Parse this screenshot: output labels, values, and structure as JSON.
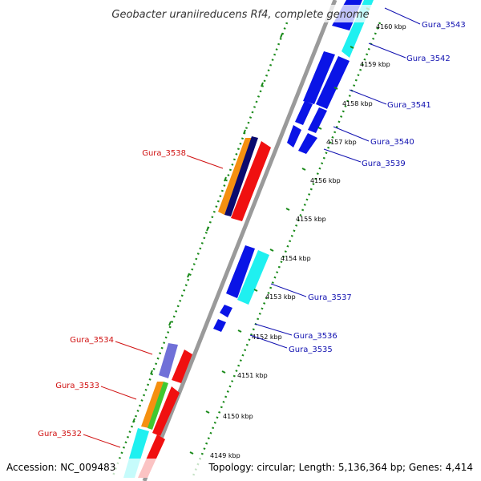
{
  "title": "Geobacter uraniireducens Rf4, complete genome",
  "accession": "Accession: NC_009483",
  "topology": "Topology: circular; Length: 5,136,364 bp; Genes: 4,414",
  "colors": {
    "blue": "#0a14e6",
    "cyan": "#1ff0f0",
    "red": "#f01010",
    "orange": "#f59010",
    "navy": "#0a0a6e",
    "purple": "#7070d8",
    "green": "#40c830",
    "backbone": "#9a9a9a",
    "tick": "#1a8a1a",
    "label_forward": "#1010b0",
    "label_reverse": "#d01010"
  },
  "ticks": [
    {
      "label": "4149 kbp"
    },
    {
      "label": "4150 kbp"
    },
    {
      "label": "4151 kbp"
    },
    {
      "label": "4152 kbp"
    },
    {
      "label": "4153 kbp"
    },
    {
      "label": "4154 kbp"
    },
    {
      "label": "4155 kbp"
    },
    {
      "label": "4156 kbp"
    },
    {
      "label": "4157 kbp"
    },
    {
      "label": "4158 kbp"
    },
    {
      "label": "4159 kbp"
    },
    {
      "label": "4160 kbp"
    }
  ],
  "gene_labels": [
    {
      "name": "Gura_3543",
      "strand": "forward"
    },
    {
      "name": "Gura_3542",
      "strand": "forward"
    },
    {
      "name": "Gura_3541",
      "strand": "forward"
    },
    {
      "name": "Gura_3540",
      "strand": "forward"
    },
    {
      "name": "Gura_3539",
      "strand": "forward"
    },
    {
      "name": "Gura_3538",
      "strand": "reverse"
    },
    {
      "name": "Gura_3537",
      "strand": "forward"
    },
    {
      "name": "Gura_3536",
      "strand": "forward"
    },
    {
      "name": "Gura_3535",
      "strand": "forward"
    },
    {
      "name": "Gura_3534",
      "strand": "reverse"
    },
    {
      "name": "Gura_3533",
      "strand": "reverse"
    },
    {
      "name": "Gura_3532",
      "strand": "reverse"
    }
  ]
}
